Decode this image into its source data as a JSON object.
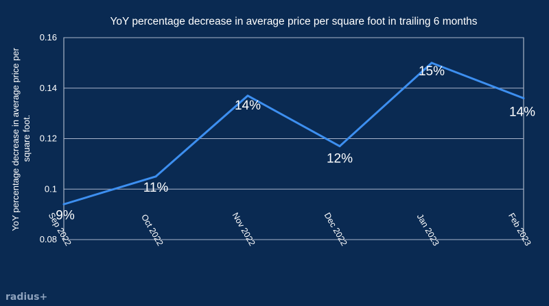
{
  "chart_data": {
    "type": "line",
    "title": "YoY percentage decrease in average price per square foot in trailing 6 months",
    "ylabel_lines": [
      "YoY percentage decrease in average price per",
      "square foot."
    ],
    "xlabel": "",
    "categories": [
      "Sep 2022",
      "Oct 2022",
      "Nov 2022",
      "Dec 2022",
      "Jan 2023",
      "Feb 2023"
    ],
    "y_ticks": [
      "0.08",
      "0.1",
      "0.12",
      "0.14",
      "0.16"
    ],
    "ylim": [
      0.08,
      0.16
    ],
    "series": [
      {
        "values": [
          0.094,
          0.105,
          0.137,
          0.117,
          0.15,
          0.136
        ],
        "data_labels": [
          "9%",
          "11%",
          "14%",
          "12%",
          "15%",
          "14%"
        ],
        "color": "#3d8ff0"
      }
    ],
    "grid": "horizontal",
    "background_color": "#0a2a52",
    "gridline_color": "#a9b5cc"
  },
  "brand": {
    "logo_text": "radius+"
  }
}
